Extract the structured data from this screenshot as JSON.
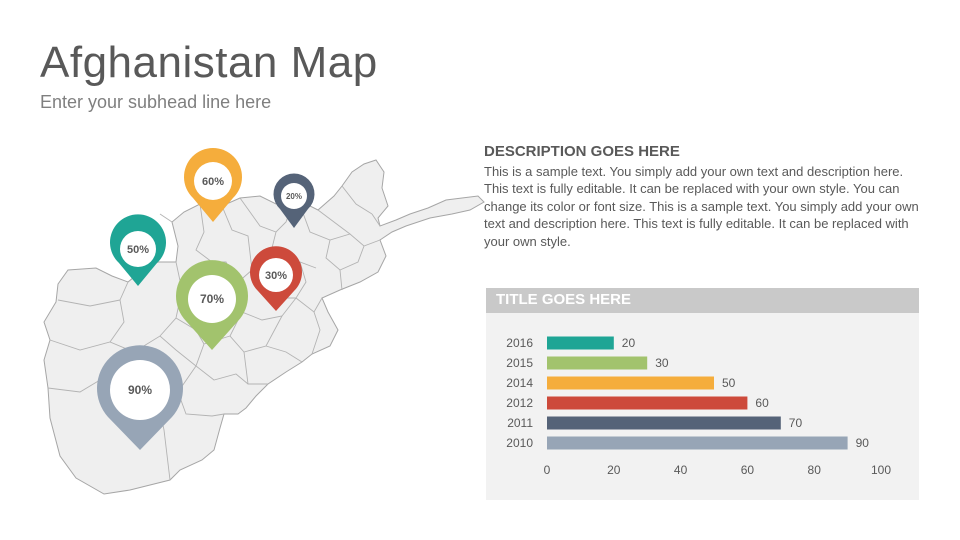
{
  "header": {
    "title": "Afghanistan Map",
    "subtitle": "Enter your subhead line here"
  },
  "description": {
    "heading": "DESCRIPTION GOES HERE",
    "body": "This is a sample text. You simply add your own text and description here. This text is fully editable. It can be replaced with your own style. You can change its color or font size. This is a sample text. You simply add your own text and description here. This text is fully editable. It can be replaced with your own style."
  },
  "map": {
    "pins": [
      {
        "label": "60%",
        "color": "#f5ad3c",
        "name": "pin-60"
      },
      {
        "label": "20%",
        "color": "#556378",
        "name": "pin-20"
      },
      {
        "label": "50%",
        "color": "#1fa595",
        "name": "pin-50"
      },
      {
        "label": "30%",
        "color": "#cd4a3b",
        "name": "pin-30"
      },
      {
        "label": "70%",
        "color": "#a2c36d",
        "name": "pin-70"
      },
      {
        "label": "90%",
        "color": "#97a5b6",
        "name": "pin-90"
      }
    ]
  },
  "chart_data": {
    "type": "bar",
    "orientation": "horizontal",
    "title": "TITLE GOES HERE",
    "categories": [
      "2016",
      "2015",
      "2014",
      "2012",
      "2011",
      "2010"
    ],
    "values": [
      20,
      30,
      50,
      60,
      70,
      90
    ],
    "colors": [
      "#1fa595",
      "#a2c36d",
      "#f5ad3c",
      "#cd4a3b",
      "#556378",
      "#97a5b6"
    ],
    "xlim": [
      0,
      100
    ],
    "xticks": [
      0,
      20,
      40,
      60,
      80,
      100
    ],
    "grid": false,
    "data_labels": true
  }
}
